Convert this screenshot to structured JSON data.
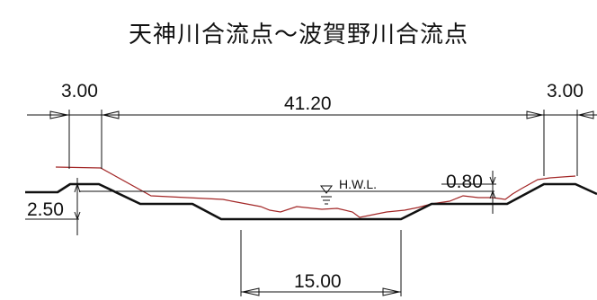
{
  "title": "天神川合流点～波賀野川合流点",
  "dimensions": {
    "left_berm": "3.00",
    "top_width": "41.20",
    "right_berm": "3.00",
    "levee_height": "2.50",
    "freeboard": "0.80",
    "bottom_width": "15.00"
  },
  "water_level_label": "H.W.L.",
  "colors": {
    "design_section": "#111111",
    "existing_ground": "#a32727"
  }
}
